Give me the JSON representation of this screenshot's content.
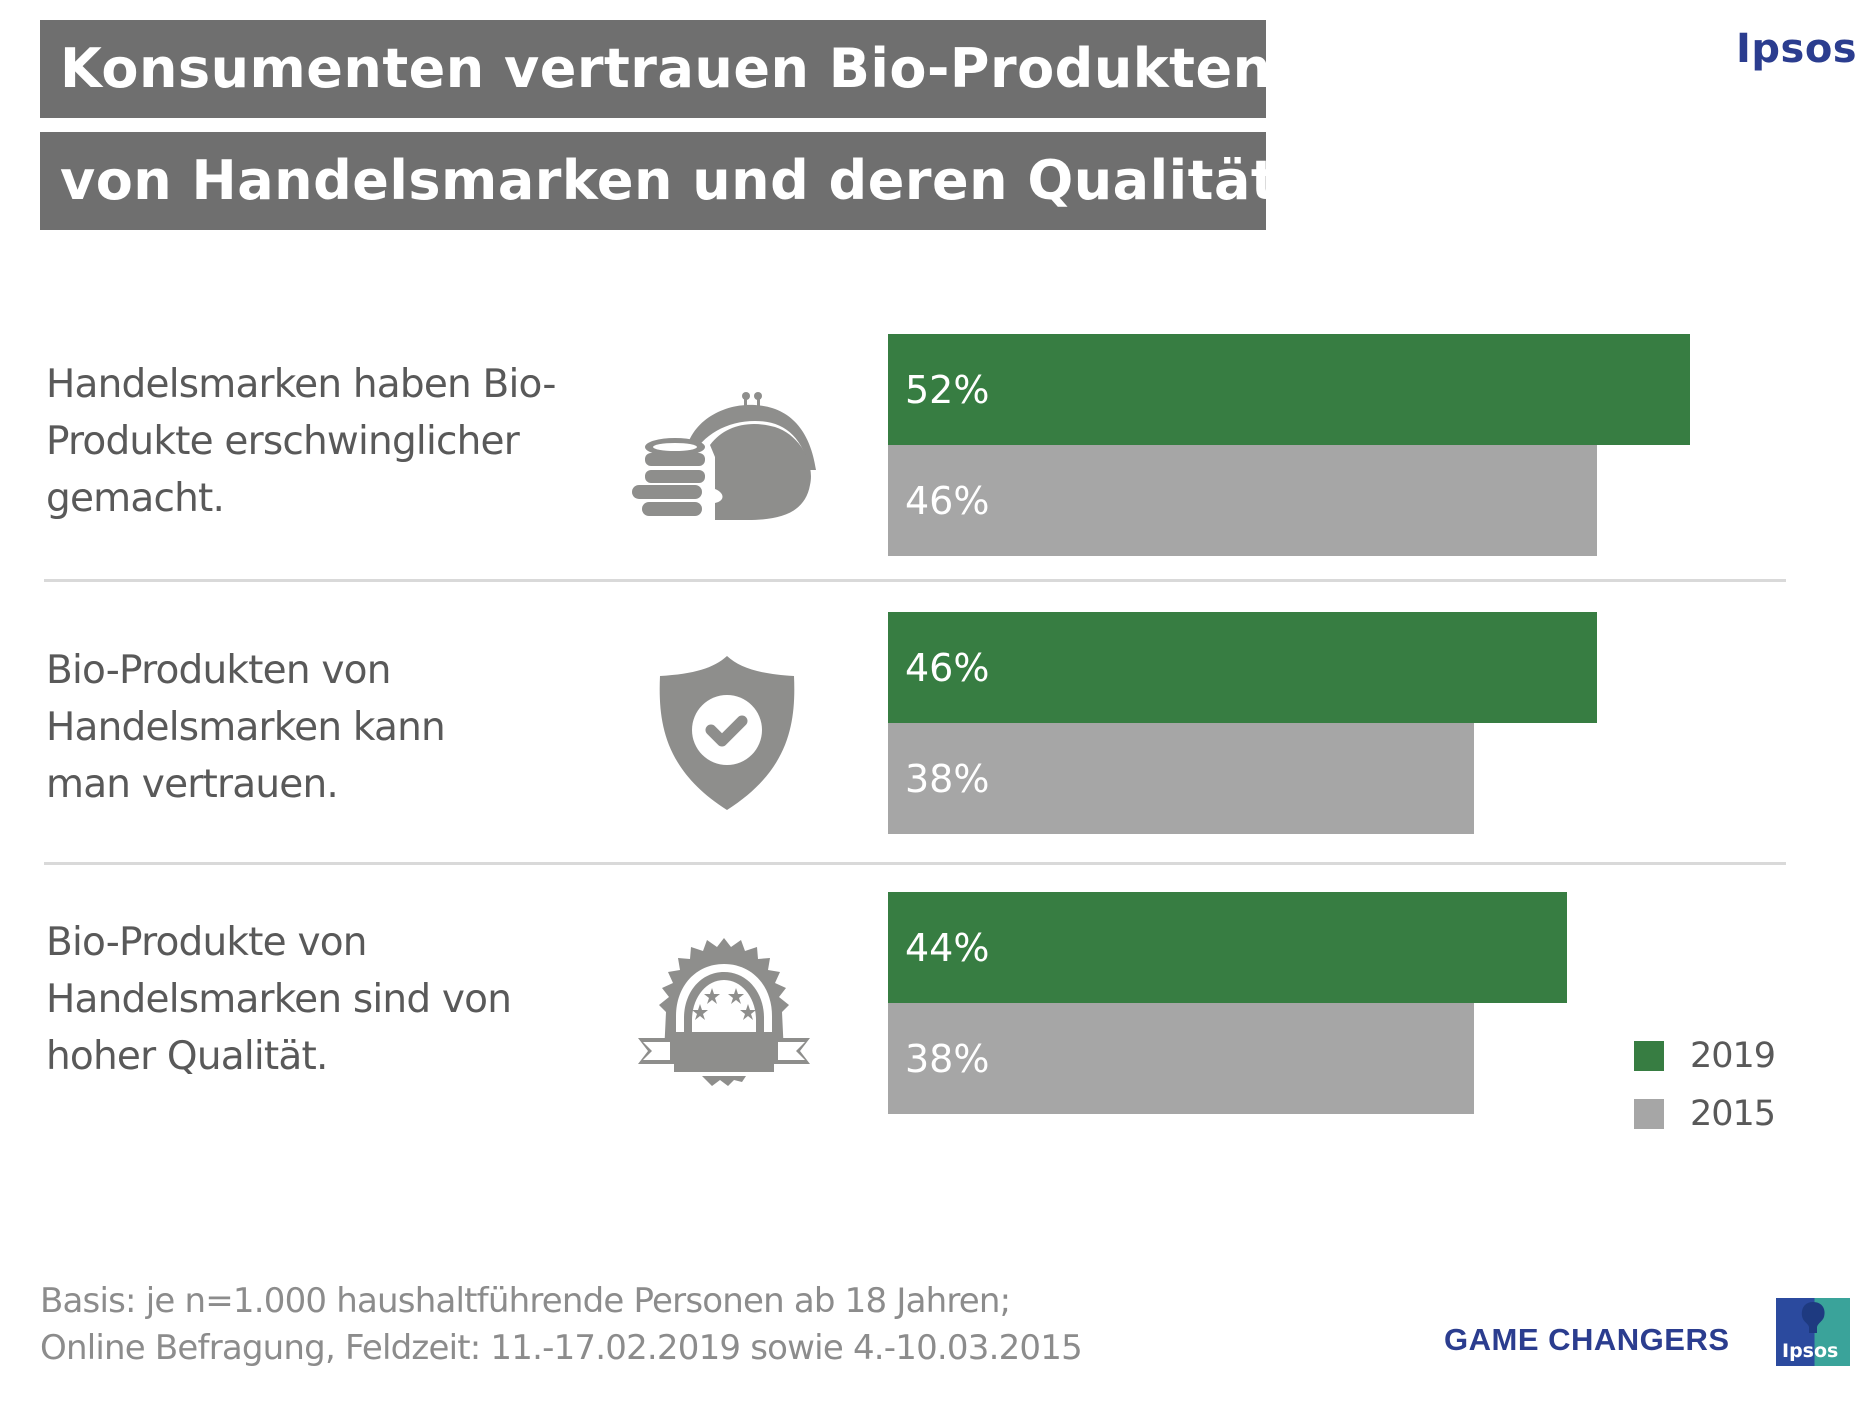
{
  "header": {
    "title_line1": "Konsumenten vertrauen Bio-Produkten",
    "title_line2": "von Handelsmarken und deren Qualität",
    "brand": "Ipsos"
  },
  "colors": {
    "series_2019": "#377d42",
    "series_2015": "#a6a6a6",
    "title_bg": "#6f6f6f",
    "icon_gray": "#8e8e8c",
    "brand_blue": "#2b3d8f"
  },
  "rows": [
    {
      "label_lines": [
        "Handelsmarken haben Bio-",
        "Produkte erschwinglicher",
        "gemacht."
      ],
      "icon": "purse-coins-icon"
    },
    {
      "label_lines": [
        "Bio-Produkten von",
        "Handelsmarken kann",
        "man vertrauen."
      ],
      "icon": "shield-check-icon"
    },
    {
      "label_lines": [
        "Bio-Produkte von",
        "Handelsmarken sind von",
        "hoher Qualität."
      ],
      "icon": "quality-badge-icon"
    }
  ],
  "chart_data": {
    "type": "bar",
    "orientation": "horizontal",
    "title": "Konsumenten vertrauen Bio-Produkten von Handelsmarken und deren Qualität",
    "categories": [
      "Handelsmarken haben Bio-Produkte erschwinglicher gemacht.",
      "Bio-Produkten von Handelsmarken kann man vertrauen.",
      "Bio-Produkte von Handelsmarken sind von hoher Qualität."
    ],
    "series": [
      {
        "name": "2019",
        "values": [
          52,
          46,
          44
        ],
        "labels": [
          "52%",
          "46%",
          "44%"
        ]
      },
      {
        "name": "2015",
        "values": [
          46,
          38,
          38
        ],
        "labels": [
          "46%",
          "38%",
          "38%"
        ]
      }
    ],
    "unit": "%",
    "xlim": [
      0,
      100
    ],
    "grid": false,
    "legend_position": "bottom-right",
    "xlabel": "",
    "ylabel": ""
  },
  "legend": [
    {
      "label": "2019"
    },
    {
      "label": "2015"
    }
  ],
  "footer": {
    "note_line1": "Basis: je n=1.000 haushaltführende  Personen ab 18 Jahren;",
    "note_line2": "Online Befragung, Feldzeit: 11.-17.02.2019 sowie 4.-10.03.2015",
    "tagline": "GAME CHANGERS",
    "logo_text": "Ipsos"
  }
}
